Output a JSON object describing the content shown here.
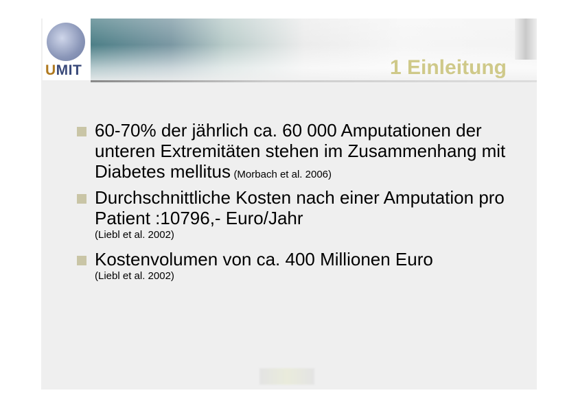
{
  "logo": {
    "text_u": "U",
    "text_rest": "MIT"
  },
  "title": "1 Einleitung",
  "bullets": [
    {
      "text": "60-70% der jährlich ca. 60 000 Amputationen der unteren Extremitäten stehen im Zusammenhang mit Diabetes mellitus",
      "citation": "(Morbach et al. 2006)"
    },
    {
      "text": "Durchschnittliche Kosten nach einer Amputation pro Patient :10796,- Euro/Jahr",
      "citation": "(Liebl et al. 2002)"
    },
    {
      "text": "Kostenvolumen von ca. 400 Millionen Euro",
      "citation": "(Liebl et al. 2002)"
    }
  ],
  "colors": {
    "title": "#cfc989",
    "bullet": "#c9c5a6",
    "logo": "#3a4a7a"
  }
}
